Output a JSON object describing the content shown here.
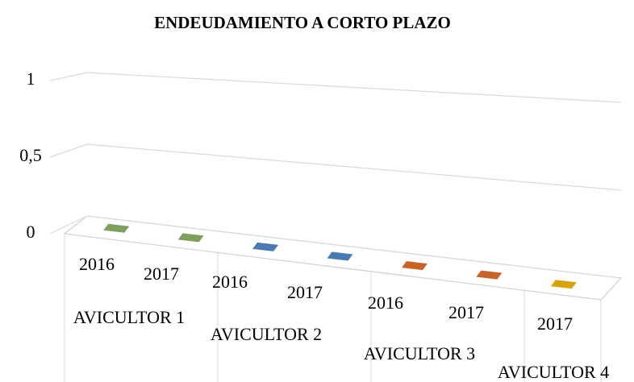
{
  "chart_data": {
    "type": "bar",
    "title": "ENDEUDAMIENTO A CORTO PLAZO",
    "groups": [
      {
        "name": "AVICULTOR 1",
        "color": "#7f9f5f",
        "categories": [
          "2016",
          "2017"
        ],
        "values": [
          0,
          0
        ]
      },
      {
        "name": "AVICULTOR 2",
        "color": "#4a7ab0",
        "categories": [
          "2016",
          "2017"
        ],
        "values": [
          0,
          0
        ]
      },
      {
        "name": "AVICULTOR 3",
        "color": "#c8642a",
        "categories": [
          "2016",
          "2017"
        ],
        "values": [
          0,
          0
        ]
      },
      {
        "name": "AVICULTOR 4",
        "color": "#d4a40f",
        "categories": [
          "2017"
        ],
        "values": [
          0
        ]
      }
    ],
    "ylim": [
      0,
      1
    ],
    "yticks": [
      0,
      {
        "value": 0.5,
        "label": "0,5"
      },
      1
    ],
    "grid": true
  }
}
